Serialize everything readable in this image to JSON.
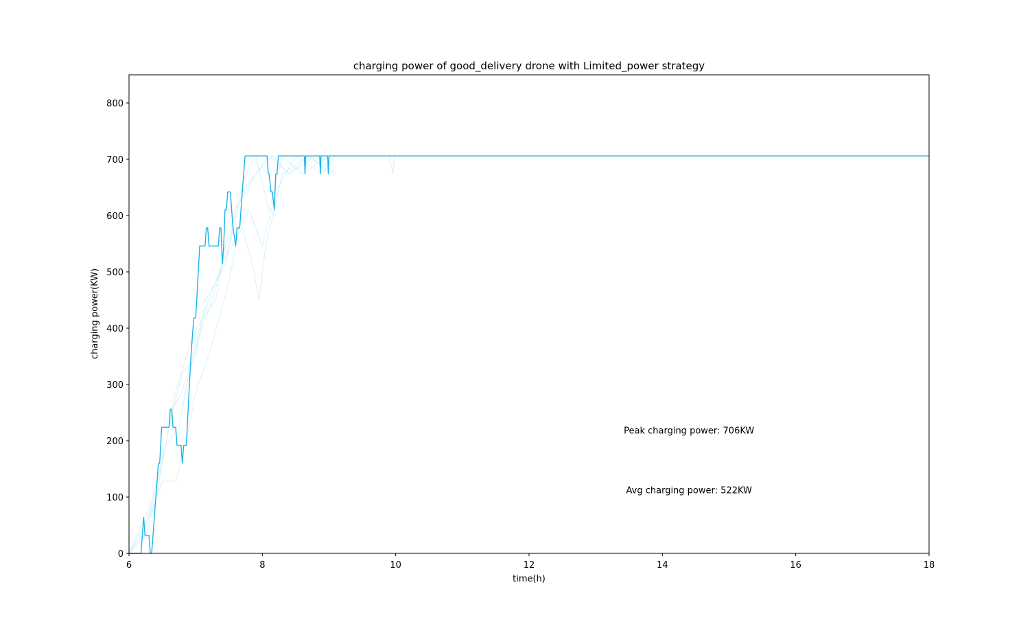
{
  "chart_data": {
    "type": "line",
    "title": "charging power of good_delivery drone with Limited_power strategy",
    "xlabel": "time(h)",
    "ylabel": "charging power(KW)",
    "xlim": [
      6,
      18
    ],
    "ylim": [
      0,
      850
    ],
    "xticks": [
      6,
      8,
      10,
      12,
      14,
      16,
      18
    ],
    "yticks": [
      0,
      100,
      200,
      300,
      400,
      500,
      600,
      700,
      800
    ],
    "line_color": "#1ab6e8",
    "faint_color": "#cdeefa",
    "grid": false,
    "series": [
      {
        "name": "main",
        "style": "solid",
        "x": [
          6.0,
          6.18,
          6.2,
          6.22,
          6.24,
          6.25,
          6.27,
          6.28,
          6.3,
          6.32,
          6.34,
          6.36,
          6.38,
          6.44,
          6.46,
          6.49,
          6.51,
          6.6,
          6.62,
          6.64,
          6.66,
          6.7,
          6.72,
          6.78,
          6.8,
          6.82,
          6.86,
          6.9,
          6.93,
          6.97,
          7.0,
          7.03,
          7.06,
          7.08,
          7.14,
          7.16,
          7.18,
          7.2,
          7.34,
          7.36,
          7.38,
          7.4,
          7.42,
          7.44,
          7.46,
          7.48,
          7.52,
          7.54,
          7.56,
          7.6,
          7.62,
          7.64,
          7.66,
          7.68,
          7.72,
          7.74,
          7.76,
          7.78,
          7.8,
          8.07,
          8.09,
          8.1,
          8.13,
          8.15,
          8.18,
          8.2,
          8.22,
          8.24,
          8.26,
          8.63,
          8.64,
          8.65,
          8.86,
          8.87,
          8.88,
          8.98,
          8.99,
          9.0,
          18.0
        ],
        "y": [
          0,
          0,
          32,
          64,
          32,
          32,
          32,
          32,
          32,
          0,
          0,
          32,
          64,
          160,
          160,
          224,
          224,
          224,
          256,
          256,
          224,
          224,
          192,
          192,
          160,
          192,
          192,
          288,
          352,
          418,
          418,
          480,
          546,
          546,
          546,
          578,
          578,
          546,
          546,
          578,
          578,
          514,
          546,
          610,
          610,
          642,
          642,
          610,
          578,
          546,
          578,
          578,
          578,
          610,
          674,
          706,
          706,
          706,
          706,
          706,
          674,
          674,
          642,
          642,
          610,
          674,
          674,
          706,
          706,
          706,
          674,
          706,
          706,
          674,
          706,
          706,
          674,
          706,
          706
        ]
      },
      {
        "name": "trace-1",
        "style": "faint",
        "x": [
          6.0,
          6.25,
          6.4,
          6.5,
          6.65,
          6.8,
          6.95,
          7.1,
          7.3,
          7.45,
          7.6,
          7.75,
          7.9,
          8.1,
          8.4,
          8.8,
          9.1
        ],
        "y": [
          0,
          32,
          96,
          160,
          256,
          288,
          352,
          418,
          450,
          546,
          610,
          642,
          674,
          706,
          674,
          706,
          674
        ]
      },
      {
        "name": "trace-2",
        "style": "faint",
        "x": [
          6.0,
          6.3,
          6.5,
          6.7,
          6.85,
          7.0,
          7.2,
          7.35,
          7.5,
          7.65,
          7.8,
          8.0,
          8.2,
          8.5,
          8.9,
          9.1
        ],
        "y": [
          0,
          64,
          128,
          128,
          192,
          288,
          352,
          418,
          482,
          578,
          610,
          546,
          642,
          706,
          674,
          706
        ]
      },
      {
        "name": "trace-3",
        "style": "faint",
        "x": [
          6.0,
          6.35,
          6.55,
          6.75,
          6.9,
          7.05,
          7.25,
          7.4,
          7.55,
          7.7,
          7.85,
          7.95,
          8.05,
          8.3,
          8.7,
          9.0
        ],
        "y": [
          0,
          96,
          192,
          224,
          320,
          384,
          450,
          514,
          546,
          578,
          514,
          450,
          546,
          674,
          706,
          674
        ]
      },
      {
        "name": "trace-4",
        "style": "faint",
        "x": [
          6.0,
          6.2,
          6.45,
          6.6,
          6.8,
          7.0,
          7.15,
          7.3,
          7.45,
          7.6,
          7.75,
          7.9,
          8.1,
          8.3,
          8.6,
          9.0,
          9.15
        ],
        "y": [
          0,
          32,
          128,
          224,
          320,
          352,
          450,
          482,
          514,
          610,
          674,
          706,
          610,
          706,
          674,
          706,
          706
        ]
      },
      {
        "name": "trace-5",
        "style": "faint",
        "x": [
          6.0,
          6.3,
          6.5,
          6.7,
          6.95,
          7.1,
          7.3,
          7.5,
          7.7,
          7.9,
          8.15,
          8.4,
          8.7,
          9.05
        ],
        "y": [
          0,
          64,
          160,
          288,
          384,
          418,
          482,
          546,
          642,
          674,
          706,
          674,
          706,
          674
        ]
      },
      {
        "name": "trace-6",
        "style": "faint",
        "x": [
          9.9,
          9.96,
          9.98
        ],
        "y": [
          706,
          674,
          706
        ]
      }
    ],
    "annotations": [
      {
        "text": "Peak charging power: 706KW",
        "x": 14.4,
        "y": 213
      },
      {
        "text": "Avg charging power: 522KW",
        "x": 14.4,
        "y": 107
      }
    ]
  }
}
